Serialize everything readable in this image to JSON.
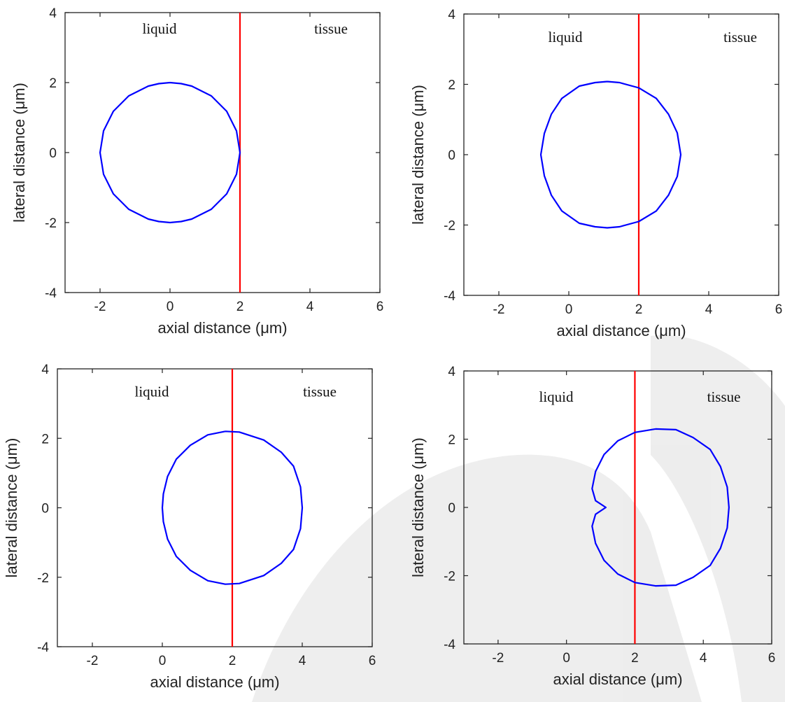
{
  "figure": {
    "watermark_color": "#e0e0e0"
  },
  "chart_data": [
    {
      "type": "line",
      "xlabel": "axial distance (μm)",
      "ylabel": "lateral distance (μm)",
      "xlim": [
        -3,
        6
      ],
      "ylim": [
        -4,
        4
      ],
      "xticks": [
        -2,
        0,
        2,
        4,
        6
      ],
      "yticks": [
        -4,
        -2,
        0,
        2,
        4
      ],
      "grid": false,
      "annotations": [
        {
          "text": "liquid",
          "x": -0.3,
          "y": 3.4
        },
        {
          "text": "tissue",
          "x": 4.6,
          "y": 3.4
        }
      ],
      "interface": {
        "x": 2,
        "color": "#ff0000"
      },
      "series": [
        {
          "color": "#0000ff",
          "x": [
            0.0,
            0.32,
            0.62,
            1.18,
            1.62,
            1.9,
            2.0,
            1.9,
            1.62,
            1.18,
            0.62,
            0.32,
            0.0,
            -0.32,
            -0.62,
            -1.18,
            -1.62,
            -1.9,
            -2.0,
            -1.9,
            -1.62,
            -1.18,
            -0.62,
            -0.32,
            0.0
          ],
          "y": [
            2.0,
            1.97,
            1.9,
            1.62,
            1.18,
            0.62,
            0.0,
            -0.62,
            -1.18,
            -1.62,
            -1.9,
            -1.97,
            -2.0,
            -1.97,
            -1.9,
            -1.62,
            -1.18,
            -0.62,
            0.0,
            0.62,
            1.18,
            1.62,
            1.9,
            1.97,
            2.0
          ]
        }
      ]
    },
    {
      "type": "line",
      "xlabel": "axial distance (μm)",
      "ylabel": "lateral distance (μm)",
      "xlim": [
        -3,
        6
      ],
      "ylim": [
        -4,
        4
      ],
      "xticks": [
        -2,
        0,
        2,
        4,
        6
      ],
      "yticks": [
        -4,
        -2,
        0,
        2,
        4
      ],
      "grid": false,
      "annotations": [
        {
          "text": "liquid",
          "x": -0.1,
          "y": 3.2
        },
        {
          "text": "tissue",
          "x": 4.9,
          "y": 3.2
        }
      ],
      "interface": {
        "x": 2,
        "color": "#ff0000"
      },
      "series": [
        {
          "color": "#0000ff",
          "x": [
            1.1,
            1.45,
            2.0,
            2.5,
            2.85,
            3.1,
            3.2,
            3.1,
            2.85,
            2.5,
            2.0,
            1.45,
            1.1,
            0.75,
            0.3,
            -0.2,
            -0.5,
            -0.7,
            -0.8,
            -0.7,
            -0.5,
            -0.2,
            0.3,
            0.75,
            1.1
          ],
          "y": [
            2.08,
            2.05,
            1.9,
            1.6,
            1.15,
            0.62,
            0.0,
            -0.62,
            -1.15,
            -1.6,
            -1.9,
            -2.05,
            -2.08,
            -2.05,
            -1.95,
            -1.6,
            -1.15,
            -0.6,
            0.0,
            0.6,
            1.15,
            1.6,
            1.95,
            2.05,
            2.08
          ]
        }
      ]
    },
    {
      "type": "line",
      "xlabel": "axial distance (μm)",
      "ylabel": "lateral distance (μm)",
      "xlim": [
        -3,
        6
      ],
      "ylim": [
        -4,
        4
      ],
      "xticks": [
        -2,
        0,
        2,
        4,
        6
      ],
      "yticks": [
        -4,
        -2,
        0,
        2,
        4
      ],
      "grid": false,
      "annotations": [
        {
          "text": "liquid",
          "x": -0.3,
          "y": 3.2
        },
        {
          "text": "tissue",
          "x": 4.5,
          "y": 3.2
        }
      ],
      "interface": {
        "x": 2,
        "color": "#ff0000"
      },
      "series": [
        {
          "color": "#0000ff",
          "x": [
            1.8,
            2.2,
            2.9,
            3.4,
            3.75,
            3.95,
            4.0,
            3.95,
            3.75,
            3.4,
            2.9,
            2.2,
            1.8,
            1.3,
            0.8,
            0.4,
            0.15,
            0.03,
            0.0,
            0.03,
            0.15,
            0.4,
            0.8,
            1.3,
            1.8
          ],
          "y": [
            2.2,
            2.18,
            1.95,
            1.6,
            1.2,
            0.6,
            0.0,
            -0.6,
            -1.2,
            -1.6,
            -1.95,
            -2.18,
            -2.2,
            -2.1,
            -1.8,
            -1.4,
            -0.9,
            -0.4,
            0.0,
            0.4,
            0.9,
            1.4,
            1.8,
            2.1,
            2.2
          ]
        }
      ]
    },
    {
      "type": "line",
      "xlabel": "axial distance (μm)",
      "ylabel": "lateral distance (μm)",
      "xlim": [
        -3,
        6
      ],
      "ylim": [
        -4,
        4
      ],
      "xticks": [
        -2,
        0,
        2,
        4,
        6
      ],
      "yticks": [
        -4,
        -2,
        0,
        2,
        4
      ],
      "grid": false,
      "annotations": [
        {
          "text": "liquid",
          "x": -0.3,
          "y": 3.1
        },
        {
          "text": "tissue",
          "x": 4.6,
          "y": 3.1
        }
      ],
      "interface": {
        "x": 2,
        "color": "#ff0000"
      },
      "series": [
        {
          "color": "#0000ff",
          "x": [
            2.6,
            3.2,
            3.7,
            4.2,
            4.5,
            4.7,
            4.75,
            4.7,
            4.5,
            4.2,
            3.7,
            3.2,
            2.6,
            2.0,
            1.5,
            1.1,
            0.85,
            0.75,
            0.85,
            1.15,
            0.85,
            0.75,
            0.85,
            1.1,
            1.5,
            2.0,
            2.6
          ],
          "y": [
            2.3,
            2.28,
            2.05,
            1.7,
            1.2,
            0.6,
            0.0,
            -0.6,
            -1.2,
            -1.7,
            -2.05,
            -2.28,
            -2.3,
            -2.2,
            -1.95,
            -1.55,
            -1.05,
            -0.55,
            -0.2,
            0.0,
            0.2,
            0.55,
            1.05,
            1.55,
            1.95,
            2.2,
            2.3
          ]
        }
      ]
    }
  ]
}
